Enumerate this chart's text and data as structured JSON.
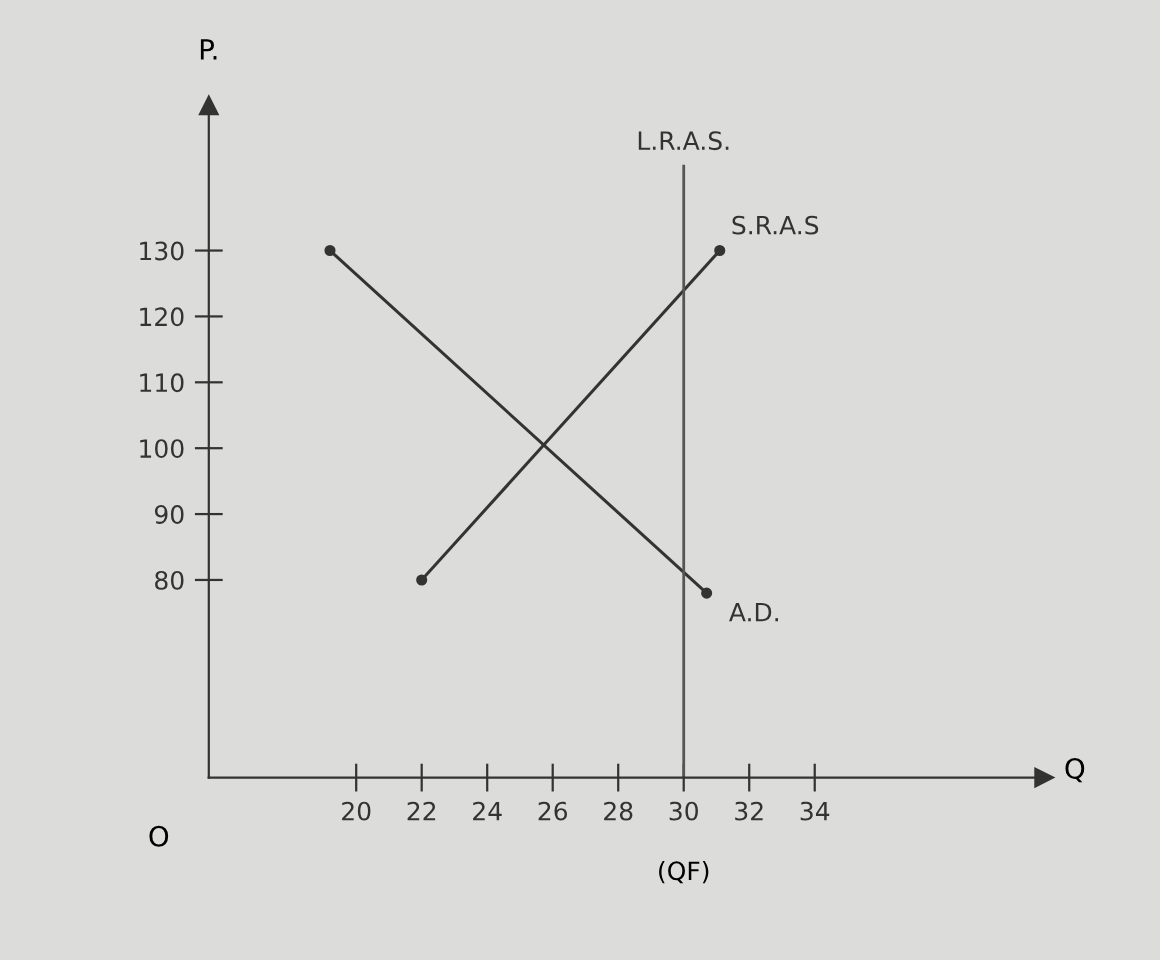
{
  "chart_data": {
    "type": "line",
    "xlabel": "Q",
    "ylabel": "P.",
    "xlim": [
      15.5,
      41
    ],
    "ylim": [
      50,
      152
    ],
    "xticks": [
      20,
      22,
      24,
      26,
      28,
      30,
      32,
      34
    ],
    "yticks": [
      80,
      90,
      100,
      110,
      120,
      130
    ],
    "grid": false,
    "series": [
      {
        "name": "A.D.",
        "color": "#333333",
        "x": [
          19.2,
          30.7
        ],
        "values": [
          130,
          78
        ],
        "marker": "circle"
      },
      {
        "name": "S.R.A.S",
        "color": "#333333",
        "x": [
          22,
          31.1
        ],
        "values": [
          80,
          130
        ],
        "marker": "circle"
      }
    ],
    "ref_lines": [
      {
        "axis": "x",
        "value": 30,
        "label": "L.R.A.S.",
        "color": "#555555",
        "line_style": "solid"
      }
    ],
    "annotations": [
      "O",
      "(QF)"
    ]
  }
}
